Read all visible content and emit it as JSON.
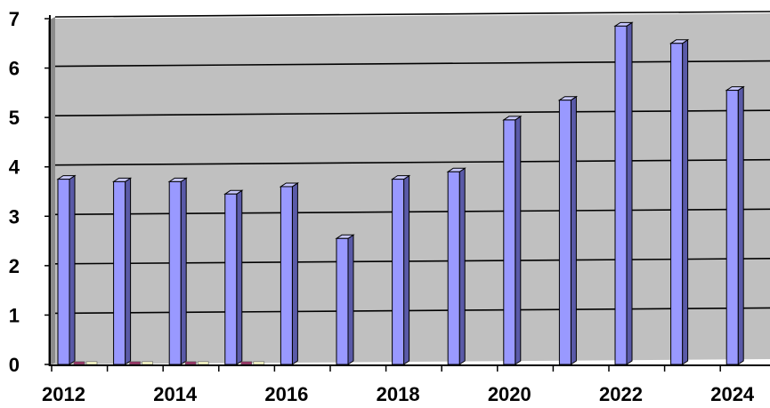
{
  "chart_data": {
    "type": "bar",
    "title": "",
    "xlabel": "",
    "ylabel": "",
    "grid": true,
    "legend": "none",
    "ylim": [
      0,
      7
    ],
    "y_ticks": [
      "0",
      "1",
      "2",
      "3",
      "4",
      "5",
      "6",
      "7"
    ],
    "x_tick_labels": [
      "2012",
      "2014",
      "2016",
      "2018",
      "2020",
      "2022",
      "2024"
    ],
    "categories": [
      "2012",
      "2013",
      "2014",
      "2015",
      "2016",
      "2017",
      "2018",
      "2019",
      "2020",
      "2021",
      "2022",
      "2023",
      "2024"
    ],
    "series": [
      {
        "color": "#9999ff",
        "values": [
          3.75,
          3.7,
          3.7,
          3.45,
          3.6,
          2.55,
          3.75,
          3.9,
          4.95,
          5.35,
          6.85,
          6.5,
          5.55
        ]
      },
      {
        "color": "#993366",
        "values": [
          0.02,
          0.02,
          0.02,
          0.02,
          null,
          null,
          null,
          null,
          null,
          null,
          null,
          null,
          null
        ]
      },
      {
        "color": "#ffffcc",
        "values": [
          0.02,
          0.02,
          0.02,
          0.02,
          null,
          null,
          null,
          null,
          null,
          null,
          null,
          null,
          null
        ]
      }
    ],
    "colors": {
      "plot_background": "#c0c0c0",
      "gridline": "#000000",
      "bar_side": "#5a5aa8",
      "bar_top": "#c8c8ff"
    }
  }
}
